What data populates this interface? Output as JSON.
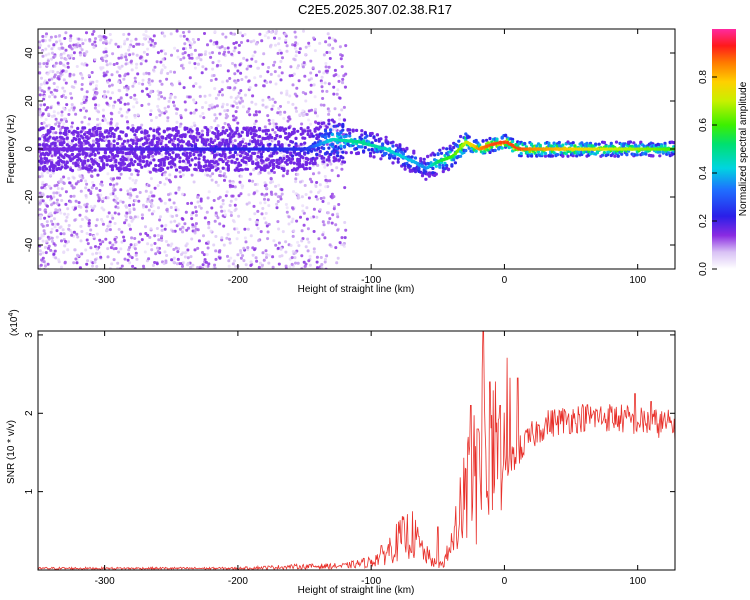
{
  "title": "C2E5.2025.307.02.38.R17",
  "chart_data": [
    {
      "type": "heatmap",
      "xlabel": "Height of straight line (km)",
      "ylabel": "Frequency (Hz)",
      "xlim": [
        -350,
        128
      ],
      "ylim": [
        -50,
        50
      ],
      "xticks": [
        -300,
        -200,
        -100,
        0,
        100
      ],
      "yticks": [
        -40,
        -20,
        0,
        20,
        40
      ],
      "colorbar": {
        "label": "Normalized spectral amplitude",
        "range": [
          0,
          1
        ],
        "ticks": [
          "0.0",
          "0.2",
          "0.4",
          "0.6",
          "0.8"
        ]
      },
      "ridge": {
        "description_points_x": [
          -350,
          -150,
          -130,
          -110,
          -90,
          -70,
          -60,
          -50,
          -40,
          -30,
          -20,
          -10,
          0,
          10,
          20,
          128
        ],
        "description_points_y": [
          0,
          0,
          4,
          3,
          0,
          -5,
          -8,
          -5,
          -3,
          3,
          0,
          2,
          3,
          0,
          0,
          0
        ],
        "amplitude": [
          0.15,
          0.25,
          0.45,
          0.5,
          0.45,
          0.4,
          0.35,
          0.55,
          0.6,
          0.7,
          0.85,
          0.9,
          0.9,
          0.9,
          0.85,
          0.6
        ]
      }
    },
    {
      "type": "line",
      "xlabel": "Height of straight line (km)",
      "ylabel": "SNR (10 * v/v)",
      "yscale_label": "(x10",
      "yscale_exp": "4",
      "xlim": [
        -350,
        128
      ],
      "ylim": [
        0,
        3.05
      ],
      "xticks": [
        -300,
        -200,
        -100,
        0,
        100
      ],
      "yticks": [
        1,
        2,
        3
      ],
      "series": [
        {
          "color": "#e8302a",
          "envelope_x": [
            -350,
            -200,
            -160,
            -120,
            -100,
            -90,
            -80,
            -70,
            -60,
            -50,
            -45,
            -40,
            -35,
            -30,
            -25,
            -20,
            -15,
            -10,
            -5,
            0,
            10,
            20,
            30,
            40,
            60,
            80,
            100,
            128
          ],
          "envelope_y": [
            0.02,
            0.02,
            0.04,
            0.05,
            0.1,
            0.2,
            0.35,
            0.45,
            0.2,
            0.05,
            0.1,
            0.3,
            0.6,
            0.9,
            1.1,
            1.3,
            1.4,
            1.1,
            1.2,
            1.3,
            1.5,
            1.7,
            1.85,
            1.9,
            1.95,
            1.95,
            1.9,
            1.85
          ],
          "spikes": [
            {
              "x": -50,
              "y": 0.55
            },
            {
              "x": -25,
              "y": 2.1
            },
            {
              "x": -20,
              "y": 1.8
            },
            {
              "x": -16,
              "y": 3.05
            },
            {
              "x": -11,
              "y": 2.4
            },
            {
              "x": -3,
              "y": 2.1
            },
            {
              "x": 10,
              "y": 2.45
            },
            {
              "x": 98,
              "y": 2.25
            },
            {
              "x": 110,
              "y": 2.15
            }
          ]
        }
      ]
    }
  ]
}
